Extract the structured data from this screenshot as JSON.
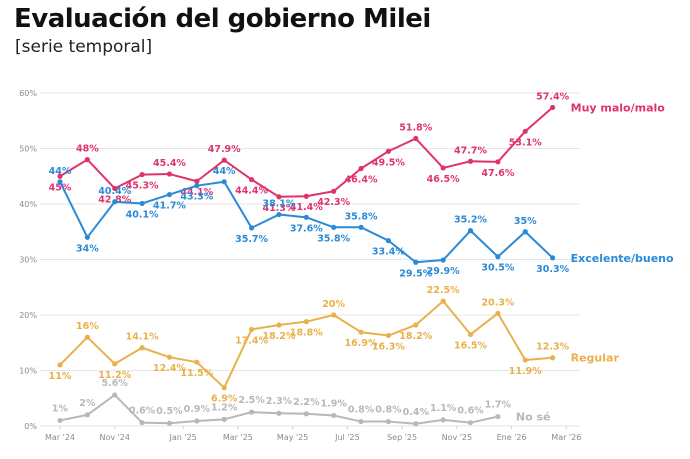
{
  "header": {
    "title": "Evaluación del gobierno Milei",
    "subtitle": "[serie temporal]"
  },
  "chart_data": {
    "type": "line",
    "title": "Evaluación del gobierno Milei",
    "subtitle": "[serie temporal]",
    "xlabel": "",
    "ylabel": "",
    "ylim": [
      0,
      60
    ],
    "yticks": [
      "0%",
      "10%",
      "20%",
      "30%",
      "40%",
      "50%",
      "60%"
    ],
    "grid": true,
    "x_tick_labels": [
      "Mar '24",
      "Nov '24",
      "Jan '25",
      "Mar '25",
      "May '25",
      "Jul '25",
      "Sep '25",
      "Nov '25",
      "Ene '26",
      "Mar '26"
    ],
    "x_tick_positions": [
      0,
      4,
      9,
      13,
      17,
      21,
      25,
      29,
      33,
      37
    ],
    "x": [
      0,
      2,
      4,
      6,
      9,
      11,
      13,
      14,
      16,
      18,
      19,
      21,
      23,
      25,
      27,
      28,
      29,
      31,
      32,
      33,
      35,
      36,
      37
    ],
    "series": [
      {
        "name": "Muy malo/malo",
        "color": "#e0336e",
        "values": [
          45,
          48,
          42.8,
          45.3,
          45.4,
          44.1,
          47.9,
          44.4,
          41.3,
          41.4,
          42.3,
          46.4,
          49.5,
          51.8,
          46.5,
          47.7,
          47.6,
          53.1,
          57.4
        ],
        "x": [
          0,
          2,
          4,
          6,
          8,
          10,
          12,
          14,
          16,
          18,
          20,
          22,
          24,
          26,
          28,
          30,
          32,
          34,
          36
        ],
        "labels": [
          "45%",
          "48%",
          "42.8%",
          "45.3%",
          "45.4%",
          "44.1%",
          "47.9%",
          "44.4%",
          "41.3%",
          "41.4%",
          "42.3%",
          "46.4%",
          "49.5%",
          "51.8%",
          "46.5%",
          "47.7%",
          "47.6%",
          "53.1%",
          "57.4%"
        ]
      },
      {
        "name": "Excelente/bueno",
        "color": "#2a8ad8",
        "values": [
          44,
          34,
          40.4,
          40.1,
          41.7,
          43.3,
          44,
          35.7,
          38.1,
          37.6,
          35.8,
          35.8,
          33.4,
          29.5,
          29.9,
          35.2,
          30.5,
          35,
          30.3
        ],
        "x": [
          0,
          2,
          4,
          6,
          8,
          10,
          12,
          14,
          16,
          18,
          20,
          22,
          24,
          26,
          28,
          30,
          32,
          34,
          36
        ],
        "labels": [
          "44%",
          "34%",
          "40.4%",
          "40.1%",
          "41.7%",
          "43.3%",
          "44%",
          "35.7%",
          "38.1%",
          "37.6%",
          "35.8%",
          "35.8%",
          "33.4%",
          "29.5%",
          "29.9%",
          "35.2%",
          "30.5%",
          "35%",
          "30.3%"
        ]
      },
      {
        "name": "Regular",
        "color": "#eab04a",
        "values": [
          11,
          16,
          11.2,
          14.1,
          12.4,
          11.5,
          6.9,
          17.4,
          18.2,
          18.8,
          20,
          16.9,
          16.3,
          18.2,
          22.5,
          16.5,
          20.3,
          11.9,
          12.3
        ],
        "x": [
          0,
          2,
          4,
          6,
          8,
          10,
          12,
          14,
          16,
          18,
          20,
          22,
          24,
          26,
          28,
          30,
          32,
          34,
          36
        ],
        "labels": [
          "11%",
          "16%",
          "11.2%",
          "14.1%",
          "12.4%",
          "11.5%",
          "6.9%",
          "17.4%",
          "18.2%",
          "18.8%",
          "20%",
          "16.9%",
          "16.3%",
          "18.2%",
          "22.5%",
          "16.5%",
          "20.3%",
          "11.9%",
          "12.3%"
        ]
      },
      {
        "name": "No sé",
        "color": "#b8b8b8",
        "values": [
          1,
          2,
          5.6,
          0.6,
          0.5,
          0.9,
          1.2,
          2.5,
          2.3,
          2.2,
          1.9,
          0.8,
          0.8,
          0.4,
          1.1,
          0.6,
          1.7
        ],
        "x": [
          0,
          2,
          4,
          6,
          8,
          10,
          12,
          14,
          16,
          18,
          20,
          22,
          24,
          26,
          28,
          30,
          32
        ],
        "labels": [
          "1%",
          "2%",
          "5.6%",
          "0.6%",
          "0.5%",
          "0.9%",
          "1.2%",
          "2.5%",
          "2.3%",
          "2.2%",
          "1.9%",
          "0.8%",
          "0.8%",
          "0.4%",
          "1.1%",
          "0.6%",
          "1.7%"
        ]
      }
    ]
  }
}
